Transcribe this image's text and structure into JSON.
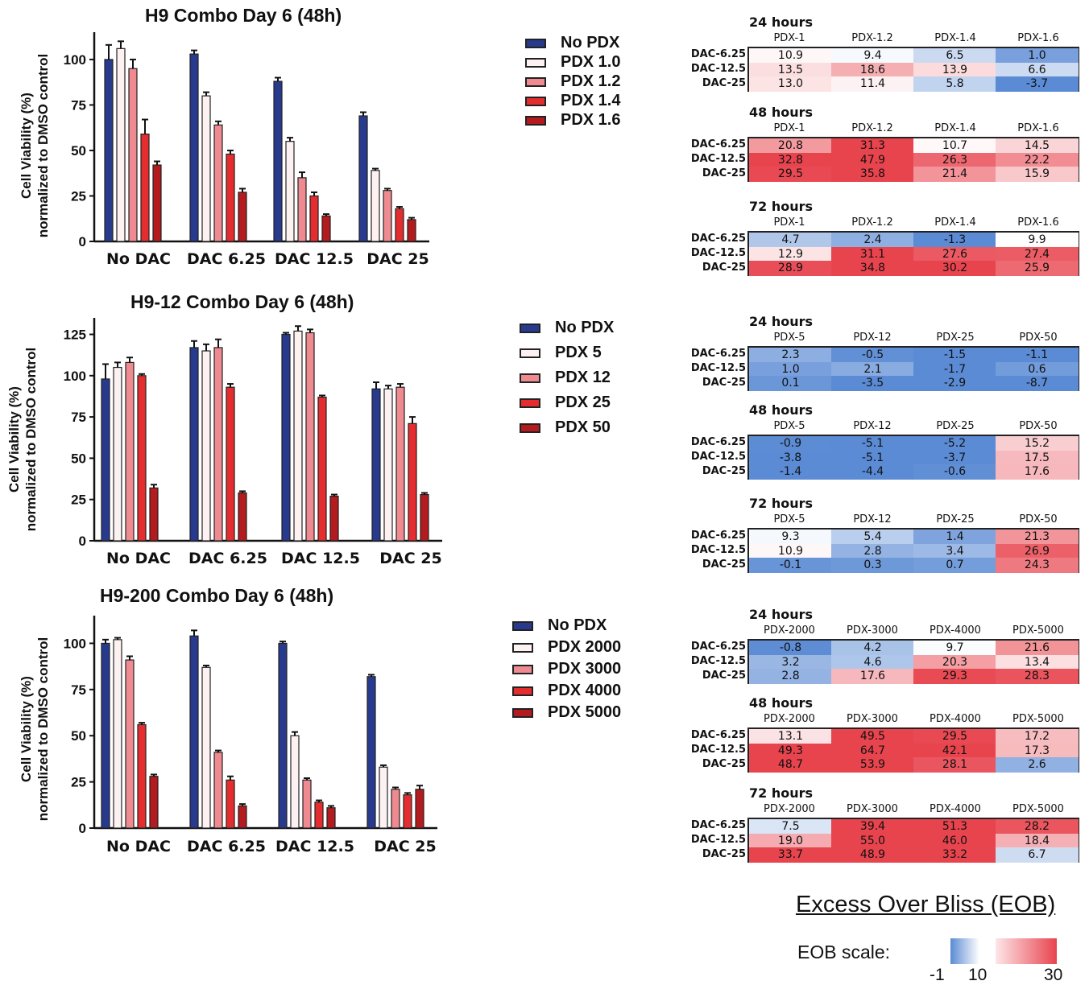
{
  "chart_data": [
    {
      "type": "bar",
      "title": "H9 Combo Day 6 (48h)",
      "ylabel": "Cell Viability (%)\nnormalized to DMSO control",
      "ylabel_lines": [
        "Cell Viability (%)",
        "normalized to DMSO control"
      ],
      "categories": [
        "No DAC",
        "DAC 6.25",
        "DAC 12.5",
        "DAC 25"
      ],
      "yticks": [
        0,
        25,
        50,
        75,
        100
      ],
      "ylim": [
        0,
        115
      ],
      "series": [
        {
          "name": "No PDX",
          "values": [
            100,
            103,
            88,
            69
          ],
          "errors": [
            8,
            2,
            2,
            2
          ]
        },
        {
          "name": "PDX 1.0",
          "values": [
            106,
            80,
            55,
            39
          ],
          "errors": [
            4,
            2,
            2,
            1
          ]
        },
        {
          "name": "PDX 1.2",
          "values": [
            95,
            64,
            35,
            28
          ],
          "errors": [
            5,
            2,
            3,
            1
          ]
        },
        {
          "name": "PDX 1.4",
          "values": [
            59,
            48,
            25,
            18
          ],
          "errors": [
            8,
            2,
            2,
            1
          ]
        },
        {
          "name": "PDX 1.6",
          "values": [
            42,
            27,
            14,
            12
          ],
          "errors": [
            2,
            2,
            1,
            1
          ]
        }
      ]
    },
    {
      "type": "bar",
      "title": "H9-12 Combo Day 6 (48h)",
      "ylabel": "Cell Viability (%)\nnormalized to DMSO control",
      "ylabel_lines": [
        "Cell Viability (%)",
        "normalized to DMSO control"
      ],
      "categories": [
        "No DAC",
        "DAC 6.25",
        "DAC 12.5",
        "DAC 25"
      ],
      "yticks": [
        0,
        25,
        50,
        75,
        100,
        125
      ],
      "ylim": [
        0,
        135
      ],
      "series": [
        {
          "name": "No PDX",
          "values": [
            98,
            117,
            125,
            92
          ],
          "errors": [
            9,
            4,
            1,
            4
          ]
        },
        {
          "name": "PDX 5",
          "values": [
            105,
            115,
            127,
            92
          ],
          "errors": [
            3,
            4,
            3,
            2
          ]
        },
        {
          "name": "PDX 12",
          "values": [
            108,
            117,
            126,
            93
          ],
          "errors": [
            3,
            5,
            2,
            2
          ]
        },
        {
          "name": "PDX 25",
          "values": [
            100,
            93,
            87,
            71
          ],
          "errors": [
            1,
            2,
            1,
            4
          ]
        },
        {
          "name": "PDX 50",
          "values": [
            32,
            29,
            27,
            28
          ],
          "errors": [
            2,
            1,
            1,
            1
          ]
        }
      ]
    },
    {
      "type": "bar",
      "title": "H9-200 Combo Day 6 (48h)",
      "ylabel": "Cell Viability (%)\nnormalized to DMSO control",
      "ylabel_lines": [
        "Cell Viability (%)",
        "normalized to DMSO control"
      ],
      "categories": [
        "No DAC",
        "DAC 6.25",
        "DAC 12.5",
        "DAC 25"
      ],
      "yticks": [
        0,
        25,
        50,
        75,
        100
      ],
      "ylim": [
        0,
        115
      ],
      "series": [
        {
          "name": "No PDX",
          "values": [
            100,
            104,
            100,
            82
          ],
          "errors": [
            2,
            3,
            1,
            1
          ]
        },
        {
          "name": "PDX 2000",
          "values": [
            102,
            87,
            50,
            33
          ],
          "errors": [
            1,
            1,
            2,
            1
          ]
        },
        {
          "name": "PDX 3000",
          "values": [
            91,
            41,
            26,
            21
          ],
          "errors": [
            2,
            1,
            1,
            1
          ]
        },
        {
          "name": "PDX 4000",
          "values": [
            56,
            26,
            14,
            18
          ],
          "errors": [
            1,
            2,
            1,
            1
          ]
        },
        {
          "name": "PDX 5000",
          "values": [
            28,
            12,
            11,
            21
          ],
          "errors": [
            1,
            1,
            1,
            2
          ]
        }
      ]
    },
    {
      "type": "heatmap",
      "title": "Excess Over Bliss (EOB)",
      "legend_label": "EOB scale:",
      "scale_ticks": [
        "-1",
        "10",
        "30"
      ],
      "scale_values": [
        -1,
        10,
        30
      ],
      "scale_colors": {
        "low": "#5b8bd4",
        "mid": "#ffffff",
        "high": "#e8444e"
      },
      "groups": [
        {
          "columns": [
            "PDX-1",
            "PDX-1.2",
            "PDX-1.4",
            "PDX-1.6"
          ],
          "rows": [
            "DAC-6.25",
            "DAC-12.5",
            "DAC-25"
          ],
          "blocks": [
            {
              "time": "24 hours",
              "values": [
                [
                  "10.9",
                  "9.4",
                  "6.5",
                  "1.0"
                ],
                [
                  "13.5",
                  "18.6",
                  "13.9",
                  "6.6"
                ],
                [
                  "13.0",
                  "11.4",
                  "5.8",
                  "-3.7"
                ]
              ]
            },
            {
              "time": "48 hours",
              "values": [
                [
                  "20.8",
                  "31.3",
                  "10.7",
                  "14.5"
                ],
                [
                  "32.8",
                  "47.9",
                  "26.3",
                  "22.2"
                ],
                [
                  "29.5",
                  "35.8",
                  "21.4",
                  "15.9"
                ]
              ]
            },
            {
              "time": "72 hours",
              "values": [
                [
                  "4.7",
                  "2.4",
                  "-1.3",
                  "9.9"
                ],
                [
                  "12.9",
                  "31.1",
                  "27.6",
                  "27.4"
                ],
                [
                  "28.9",
                  "34.8",
                  "30.2",
                  "25.9"
                ]
              ]
            }
          ]
        },
        {
          "columns": [
            "PDX-5",
            "PDX-12",
            "PDX-25",
            "PDX-50"
          ],
          "rows": [
            "DAC-6.25",
            "DAC-12.5",
            "DAC-25"
          ],
          "blocks": [
            {
              "time": "24 hours",
              "values": [
                [
                  "2.3",
                  "-0.5",
                  "-1.5",
                  "-1.1"
                ],
                [
                  "1.0",
                  "2.1",
                  "-1.7",
                  "0.6"
                ],
                [
                  "0.1",
                  "-3.5",
                  "-2.9",
                  "-8.7"
                ]
              ]
            },
            {
              "time": "48 hours",
              "values": [
                [
                  "-0.9",
                  "-5.1",
                  "-5.2",
                  "15.2"
                ],
                [
                  "-3.8",
                  "-5.1",
                  "-3.7",
                  "17.5"
                ],
                [
                  "-1.4",
                  "-4.4",
                  "-0.6",
                  "17.6"
                ]
              ]
            },
            {
              "time": "72 hours",
              "values": [
                [
                  "9.3",
                  "5.4",
                  "1.4",
                  "21.3"
                ],
                [
                  "10.9",
                  "2.8",
                  "3.4",
                  "26.9"
                ],
                [
                  "-0.1",
                  "0.3",
                  "0.7",
                  "24.3"
                ]
              ]
            }
          ]
        },
        {
          "columns": [
            "PDX-2000",
            "PDX-3000",
            "PDX-4000",
            "PDX-5000"
          ],
          "rows": [
            "DAC-6.25",
            "DAC-12.5",
            "DAC-25"
          ],
          "blocks": [
            {
              "time": "24 hours",
              "values": [
                [
                  "-0.8",
                  "4.2",
                  "9.7",
                  "21.6"
                ],
                [
                  "3.2",
                  "4.6",
                  "20.3",
                  "13.4"
                ],
                [
                  "2.8",
                  "17.6",
                  "29.3",
                  "28.3"
                ]
              ]
            },
            {
              "time": "48 hours",
              "values": [
                [
                  "13.1",
                  "49.5",
                  "29.5",
                  "17.2"
                ],
                [
                  "49.3",
                  "64.7",
                  "42.1",
                  "17.3"
                ],
                [
                  "48.7",
                  "53.9",
                  "28.1",
                  "2.6"
                ]
              ]
            },
            {
              "time": "72 hours",
              "values": [
                [
                  "7.5",
                  "39.4",
                  "51.3",
                  "28.2"
                ],
                [
                  "19.0",
                  "55.0",
                  "46.0",
                  "18.4"
                ],
                [
                  "33.7",
                  "48.9",
                  "33.2",
                  "6.7"
                ]
              ]
            }
          ]
        }
      ]
    }
  ],
  "colors": {
    "series": [
      "#283a8e",
      "#fdf1f2",
      "#ee8a90",
      "#e52d2f",
      "#b41b1f"
    ],
    "axis": "#111111"
  }
}
